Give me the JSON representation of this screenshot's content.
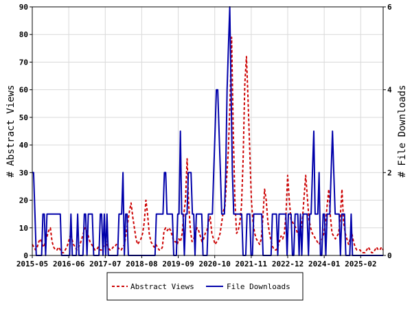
{
  "chart_data": {
    "type": "line",
    "title": "",
    "ylabel_left": "# Abstract Views",
    "ylabel_right": "# File Downloads",
    "ylim_left": [
      0,
      90
    ],
    "ylim_right": [
      0,
      6
    ],
    "y_ticks_left": [
      "0",
      "10",
      "20",
      "30",
      "40",
      "50",
      "60",
      "70",
      "80",
      "90"
    ],
    "y_ticks_right": [
      "0",
      "2",
      "4",
      "6"
    ],
    "x_ticks": [
      "2015-05",
      "2016-06",
      "2017-07",
      "2018-08",
      "2019-09",
      "2020-10",
      "2021-11",
      "2022-12",
      "2024-01",
      "2025-02"
    ],
    "x_start": "2015-05",
    "x_end": "2025-10",
    "grid": true,
    "legend_position": "bottom-center",
    "series": [
      {
        "name": "Abstract Views",
        "axis": "left",
        "color": "#cc0000",
        "style": "dashed",
        "values": [
          4,
          3,
          2,
          3,
          5,
          6,
          4,
          3,
          5,
          7,
          9,
          10,
          5,
          3,
          2,
          2,
          3,
          2,
          1,
          1,
          2,
          3,
          5,
          7,
          6,
          4,
          3,
          2,
          3,
          4,
          6,
          8,
          10,
          9,
          7,
          5,
          4,
          3,
          2,
          2,
          3,
          2,
          2,
          3,
          4,
          5,
          3,
          2,
          2,
          3,
          3,
          4,
          3,
          2,
          2,
          3,
          4,
          8,
          12,
          16,
          19,
          14,
          10,
          6,
          4,
          5,
          6,
          8,
          12,
          20,
          15,
          8,
          5,
          4,
          3,
          4,
          3,
          2,
          2,
          3,
          9,
          10,
          9,
          10,
          9,
          7,
          5,
          5,
          4,
          6,
          5,
          8,
          15,
          20,
          35,
          18,
          9,
          5,
          6,
          8,
          10,
          9,
          7,
          5,
          6,
          8,
          9,
          12,
          14,
          8,
          6,
          4,
          5,
          6,
          8,
          12,
          16,
          18,
          28,
          38,
          55,
          79,
          45,
          20,
          8,
          9,
          12,
          18,
          35,
          62,
          72,
          56,
          38,
          20,
          12,
          8,
          6,
          5,
          4,
          6,
          14,
          24,
          20,
          12,
          8,
          5,
          3,
          2,
          2,
          3,
          5,
          7,
          6,
          8,
          15,
          29,
          20,
          13,
          12,
          11,
          10,
          8,
          7,
          9,
          13,
          21,
          29,
          21,
          13,
          10,
          8,
          7,
          6,
          5,
          4,
          5,
          6,
          8,
          12,
          18,
          24,
          14,
          8,
          7,
          6,
          7,
          8,
          14,
          24,
          12,
          8,
          6,
          4,
          6,
          8,
          5,
          3,
          2,
          2,
          2,
          1,
          1,
          1,
          2,
          3,
          2,
          1,
          1,
          2,
          3,
          2,
          2,
          3,
          2
        ]
      },
      {
        "name": "File Downloads",
        "axis": "right",
        "color": "#0000aa",
        "style": "solid",
        "values": [
          2,
          2,
          1,
          0,
          0,
          0,
          0,
          0,
          1,
          1,
          0,
          1,
          1,
          1,
          1,
          1,
          1,
          1,
          1,
          1,
          1,
          1,
          0,
          0,
          0,
          0,
          0,
          0,
          0,
          1,
          0,
          0,
          0,
          0,
          1,
          0,
          0,
          0,
          0,
          1,
          1,
          0,
          1,
          1,
          1,
          1,
          0,
          0,
          0,
          0,
          0,
          1,
          1,
          0,
          1,
          0,
          1,
          0,
          0,
          0,
          0,
          0,
          0,
          0,
          0,
          1,
          1,
          1,
          2,
          0,
          1,
          1,
          0,
          0,
          0,
          0,
          0,
          0,
          0,
          0,
          0,
          0,
          0,
          0,
          0,
          0,
          0,
          0,
          0,
          0,
          0,
          0,
          0,
          1,
          1,
          1,
          1,
          1,
          1,
          2,
          2,
          1,
          1,
          1,
          1,
          1,
          0,
          0,
          0,
          1,
          1,
          3,
          1,
          1,
          0,
          1,
          1,
          2,
          2,
          2,
          1,
          1,
          0,
          1,
          1,
          1,
          1,
          1,
          0,
          0,
          0,
          0,
          1,
          1,
          1,
          1,
          2,
          3,
          4,
          4,
          3,
          2,
          1,
          1,
          1,
          2,
          4,
          5,
          6,
          4,
          2,
          1,
          1,
          1,
          1,
          1,
          1,
          1,
          0,
          0,
          0,
          1,
          1,
          1,
          0,
          0,
          1,
          1,
          1,
          1,
          1,
          1,
          1,
          0,
          0,
          0,
          0,
          0,
          0,
          0,
          1,
          1,
          1,
          1,
          0,
          1,
          1,
          1,
          1,
          1,
          1,
          0,
          1,
          1,
          1,
          0,
          0,
          1,
          1,
          1,
          0,
          1,
          0,
          1,
          1,
          1,
          1,
          0,
          1,
          1,
          2,
          3,
          1,
          1,
          1,
          2,
          0,
          0,
          1,
          1,
          0,
          1,
          1,
          1,
          2,
          3,
          2,
          1,
          1,
          1,
          1,
          0,
          1,
          1,
          1,
          0,
          0,
          0,
          0,
          1,
          0,
          0,
          0,
          0,
          0,
          0,
          0,
          0,
          0,
          0,
          0,
          0,
          0,
          0,
          0,
          0,
          0,
          0,
          0,
          0,
          0,
          0,
          0,
          0
        ]
      }
    ]
  }
}
